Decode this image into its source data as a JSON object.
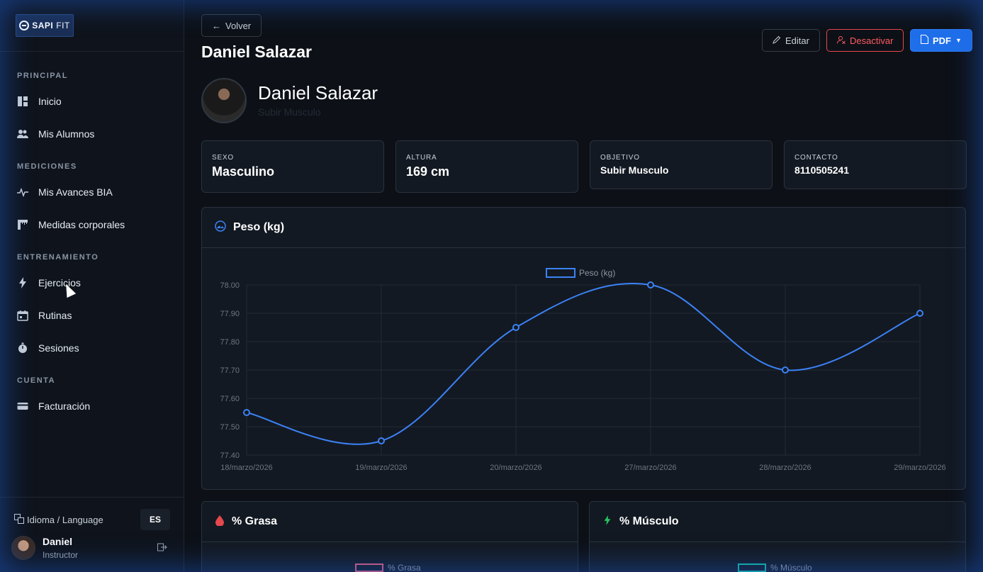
{
  "brand": {
    "name_bold": "SAPI",
    "name_light": "FIT"
  },
  "sidebar": {
    "sections": [
      {
        "title": "PRINCIPAL",
        "items": [
          {
            "label": "Inicio",
            "icon": "dashboard-icon"
          },
          {
            "label": "Mis Alumnos",
            "icon": "users-icon"
          }
        ]
      },
      {
        "title": "MEDICIONES",
        "items": [
          {
            "label": "Mis Avances BIA",
            "icon": "pulse-icon"
          },
          {
            "label": "Medidas corporales",
            "icon": "ruler-icon"
          }
        ]
      },
      {
        "title": "ENTRENAMIENTO",
        "items": [
          {
            "label": "Ejercicios",
            "icon": "bolt-icon"
          },
          {
            "label": "Rutinas",
            "icon": "calendar-icon"
          },
          {
            "label": "Sesiones",
            "icon": "stopwatch-icon"
          }
        ]
      },
      {
        "title": "CUENTA",
        "items": [
          {
            "label": "Facturación",
            "icon": "card-icon"
          }
        ]
      }
    ],
    "language_label": "Idioma / Language",
    "language_value": "ES",
    "user": {
      "name": "Daniel",
      "role": "Instructor"
    }
  },
  "header": {
    "back_label": "Volver",
    "title": "Daniel Salazar",
    "edit_label": "Editar",
    "deactivate_label": "Desactivar",
    "pdf_label": "PDF"
  },
  "profile": {
    "name": "Daniel Salazar",
    "goal": "Subir Musculo"
  },
  "info_cards": [
    {
      "label": "SEXO",
      "value": "Masculino"
    },
    {
      "label": "ALTURA",
      "value": "169 cm"
    },
    {
      "label": "OBJETIVO",
      "value": "Subir Musculo"
    },
    {
      "label": "CONTACTO",
      "value": "8110505241"
    }
  ],
  "weight_card": {
    "title": "Peso (kg)"
  },
  "chart_data": {
    "type": "line",
    "categories": [
      "18/marzo/2026",
      "19/marzo/2026",
      "20/marzo/2026",
      "27/marzo/2026",
      "28/marzo/2026",
      "29/marzo/2026"
    ],
    "series": [
      {
        "name": "Peso (kg)",
        "values": [
          77.55,
          77.45,
          77.85,
          78.0,
          77.7,
          77.9
        ],
        "color": "#3b82f6"
      }
    ],
    "ylim": [
      77.4,
      78.0
    ],
    "yticks": [
      "78.00",
      "77.90",
      "77.80",
      "77.70",
      "77.60",
      "77.50",
      "77.40"
    ],
    "legend": "top-center",
    "grid": true
  },
  "fat_card": {
    "title": "% Grasa",
    "legend": "% Grasa",
    "color": "#e05a7a"
  },
  "muscle_card": {
    "title": "% Músculo",
    "legend": "% Músculo",
    "color": "#14b8a6"
  }
}
